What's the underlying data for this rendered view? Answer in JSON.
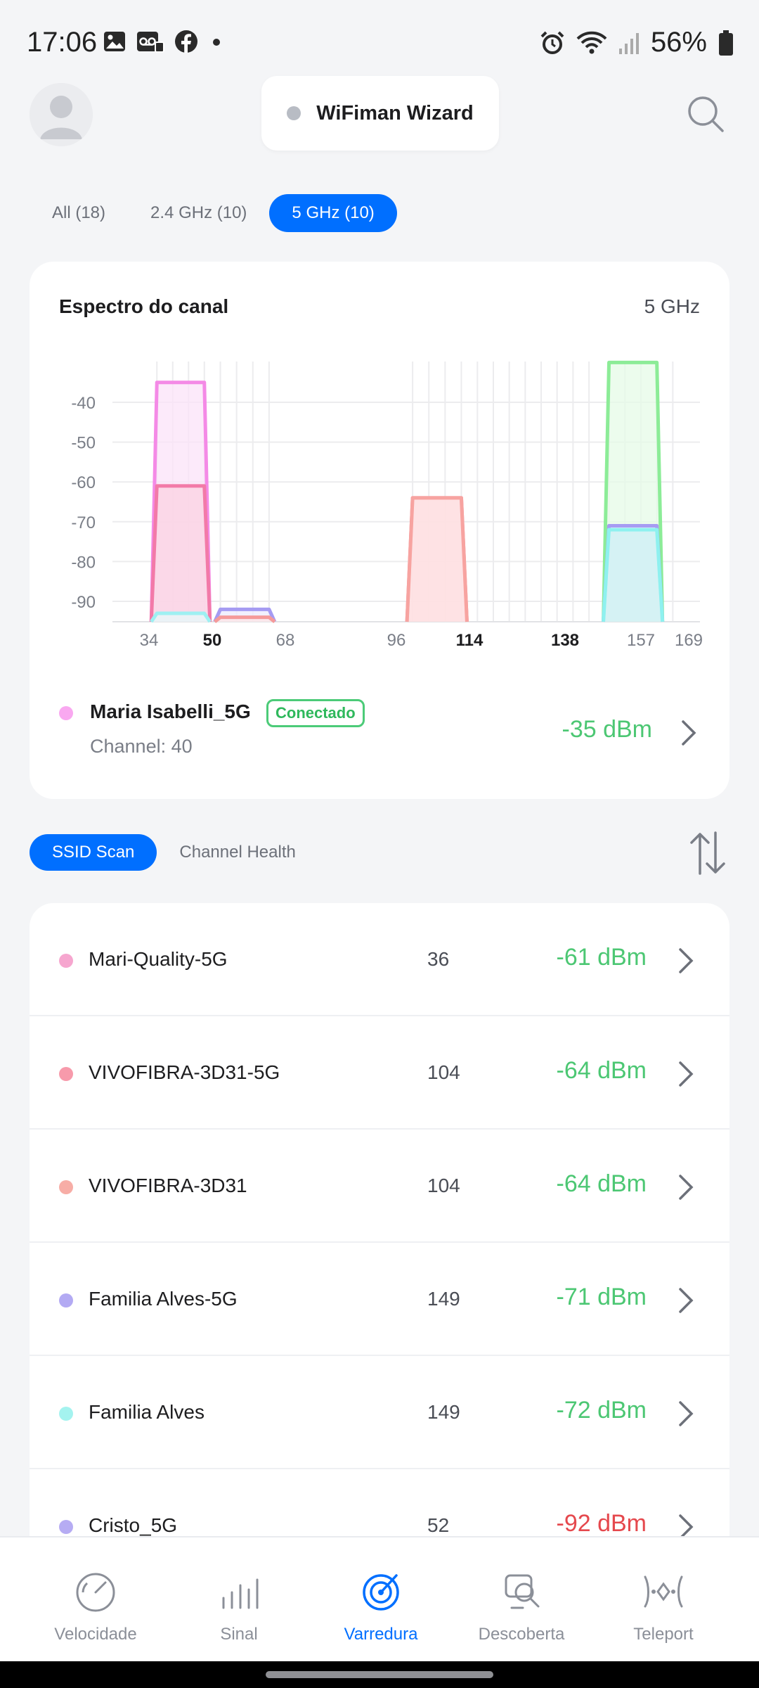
{
  "status_bar": {
    "time": "17:06",
    "battery": "56%",
    "left_icons": [
      "gallery-icon",
      "voicemail-icon",
      "facebook-icon",
      "notification-dot-icon"
    ],
    "right_icons": [
      "alarm-icon",
      "wifi-icon",
      "cell-signal-icon",
      "battery-icon"
    ]
  },
  "header": {
    "wizard_label": "WiFiman Wizard",
    "avatar_icon": "user-avatar-icon",
    "search_icon": "search-icon"
  },
  "band_tabs": [
    {
      "label": "All (18)",
      "active": false
    },
    {
      "label": "2.4 GHz (10)",
      "active": false
    },
    {
      "label": "5 GHz (10)",
      "active": true
    }
  ],
  "spectrum": {
    "title": "Espectro do canal",
    "band": "5 GHz",
    "connected": {
      "name": "Maria Isabelli_5G",
      "badge": "Conectado",
      "channel": "Channel: 40",
      "signal": "-35 dBm",
      "color": "#f9a8f0"
    }
  },
  "chart_data": {
    "type": "area",
    "title": "Espectro do canal",
    "xlabel": "",
    "ylabel": "",
    "x_ticks": [
      {
        "label": "34",
        "bold": false
      },
      {
        "label": "50",
        "bold": true
      },
      {
        "label": "68",
        "bold": false
      },
      {
        "label": "96",
        "bold": false
      },
      {
        "label": "114",
        "bold": true
      },
      {
        "label": "138",
        "bold": true
      },
      {
        "label": "157",
        "bold": false
      },
      {
        "label": "169",
        "bold": false
      }
    ],
    "y_ticks": [
      "-40",
      "-50",
      "-60",
      "-70",
      "-80",
      "-90"
    ],
    "ylim": [
      -96,
      -30
    ],
    "grid": true,
    "series": [
      {
        "channels": [
          36,
          48
        ],
        "dbm": -35,
        "color": "#f48ae6",
        "fill": "#fbe3f8"
      },
      {
        "channels": [
          36,
          48
        ],
        "dbm": -61,
        "color": "#f27aa8",
        "fill": "#fbd2e2"
      },
      {
        "channels": [
          36,
          48
        ],
        "dbm": -93,
        "color": "#9ef0f2",
        "fill": "#e6fbfb"
      },
      {
        "channels": [
          52,
          64
        ],
        "dbm": -92,
        "color": "#a59bf2",
        "fill": "#ecebfd"
      },
      {
        "channels": [
          52,
          64
        ],
        "dbm": -94,
        "color": "#f59a9a",
        "fill": "#fde6e6"
      },
      {
        "channels": [
          100,
          112
        ],
        "dbm": -64,
        "color": "#f48b9e",
        "fill": "#fddbe1"
      },
      {
        "channels": [
          100,
          112
        ],
        "dbm": -64,
        "color": "#f7a3a0",
        "fill": "#fde2e1"
      },
      {
        "channels": [
          149,
          161
        ],
        "dbm": -30,
        "color": "#8cec97",
        "fill": "#e5fbe7"
      },
      {
        "channels": [
          149,
          161
        ],
        "dbm": -71,
        "color": "#a79cf3",
        "fill": "#ebe9fd"
      },
      {
        "channels": [
          149,
          161
        ],
        "dbm": -72,
        "color": "#8ef1ef",
        "fill": "#cdf3f1"
      }
    ]
  },
  "scan_tabs": [
    {
      "label": "SSID Scan",
      "active": true
    },
    {
      "label": "Channel Health",
      "active": false
    }
  ],
  "networks": [
    {
      "name": "Mari-Quality-5G",
      "channel": "36",
      "signal": "-61 dBm",
      "color": "#f6a6cf",
      "signal_color": "#4cc773"
    },
    {
      "name": "VIVOFIBRA-3D31-5G",
      "channel": "104",
      "signal": "-64 dBm",
      "color": "#f79aab",
      "signal_color": "#4cc773"
    },
    {
      "name": "VIVOFIBRA-3D31",
      "channel": "104",
      "signal": "-64 dBm",
      "color": "#f7ada6",
      "signal_color": "#4cc773"
    },
    {
      "name": "Familia Alves-5G",
      "channel": "149",
      "signal": "-71 dBm",
      "color": "#b3aaf3",
      "signal_color": "#4cc773"
    },
    {
      "name": "Familia Alves",
      "channel": "149",
      "signal": "-72 dBm",
      "color": "#a4f3ef",
      "signal_color": "#4cc773"
    },
    {
      "name": "Cristo_5G",
      "channel": "52",
      "signal": "-92 dBm",
      "color": "#b6acf3",
      "signal_color": "#e5484d"
    }
  ],
  "bottom_nav": [
    {
      "label": "Velocidade",
      "icon": "speedometer-icon",
      "active": false
    },
    {
      "label": "Sinal",
      "icon": "signal-bars-icon",
      "active": false
    },
    {
      "label": "Varredura",
      "icon": "radar-icon",
      "active": true
    },
    {
      "label": "Descoberta",
      "icon": "discovery-icon",
      "active": false
    },
    {
      "label": "Teleport",
      "icon": "teleport-icon",
      "active": false
    }
  ],
  "colors": {
    "accent": "#006fff",
    "good_signal": "#4cc773",
    "bad_signal": "#e5484d",
    "background": "#f4f5f7"
  }
}
